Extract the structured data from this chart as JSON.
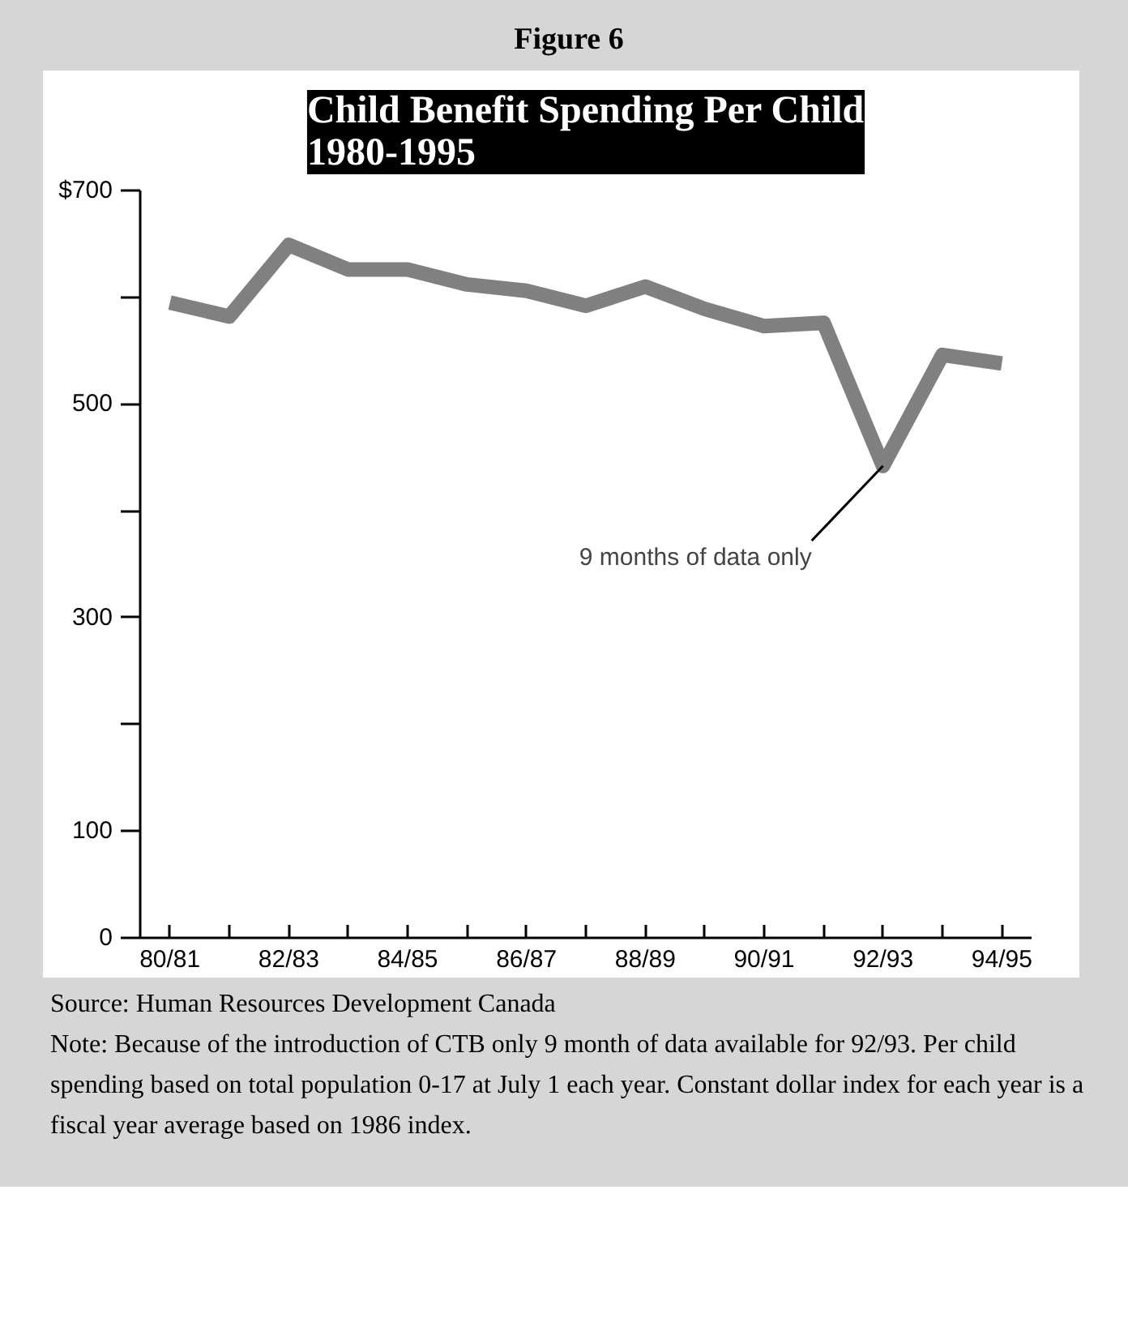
{
  "chart_data": {
    "type": "line",
    "subtitle": "Figure 6",
    "title": "Child Benefit Spending Per Child\n1980-1995",
    "categories": [
      "80/81",
      null,
      "82/83",
      null,
      "84/85",
      null,
      "86/87",
      null,
      "88/89",
      null,
      "90/91",
      null,
      "92/93",
      null,
      "94/95"
    ],
    "series": [
      {
        "color": "#808080",
        "values": [
          595,
          582,
          649,
          626,
          626,
          612,
          606,
          592,
          610,
          589,
          573,
          576,
          442,
          546,
          538
        ]
      }
    ],
    "ylim": [
      0,
      700
    ],
    "yticks": [
      0,
      100,
      {
        "value": 200,
        "label": null
      },
      300,
      {
        "value": 400,
        "label": null
      },
      500,
      {
        "value": 600,
        "label": null
      },
      {
        "value": 700,
        "label": "$700"
      }
    ],
    "grid": false,
    "line_style": "solid",
    "annotations": [
      {
        "text": "9 months of data only",
        "x": "92/93",
        "y": 442
      },
      "Source: Human Resources Development Canada",
      "Note:  Because of the introduction of CTB only 9 month of data available for 92/93. Per child spending based on total population 0-17 at July 1 each year.  Constant dollar index for each year is a fiscal year average based on 1986 index."
    ]
  }
}
